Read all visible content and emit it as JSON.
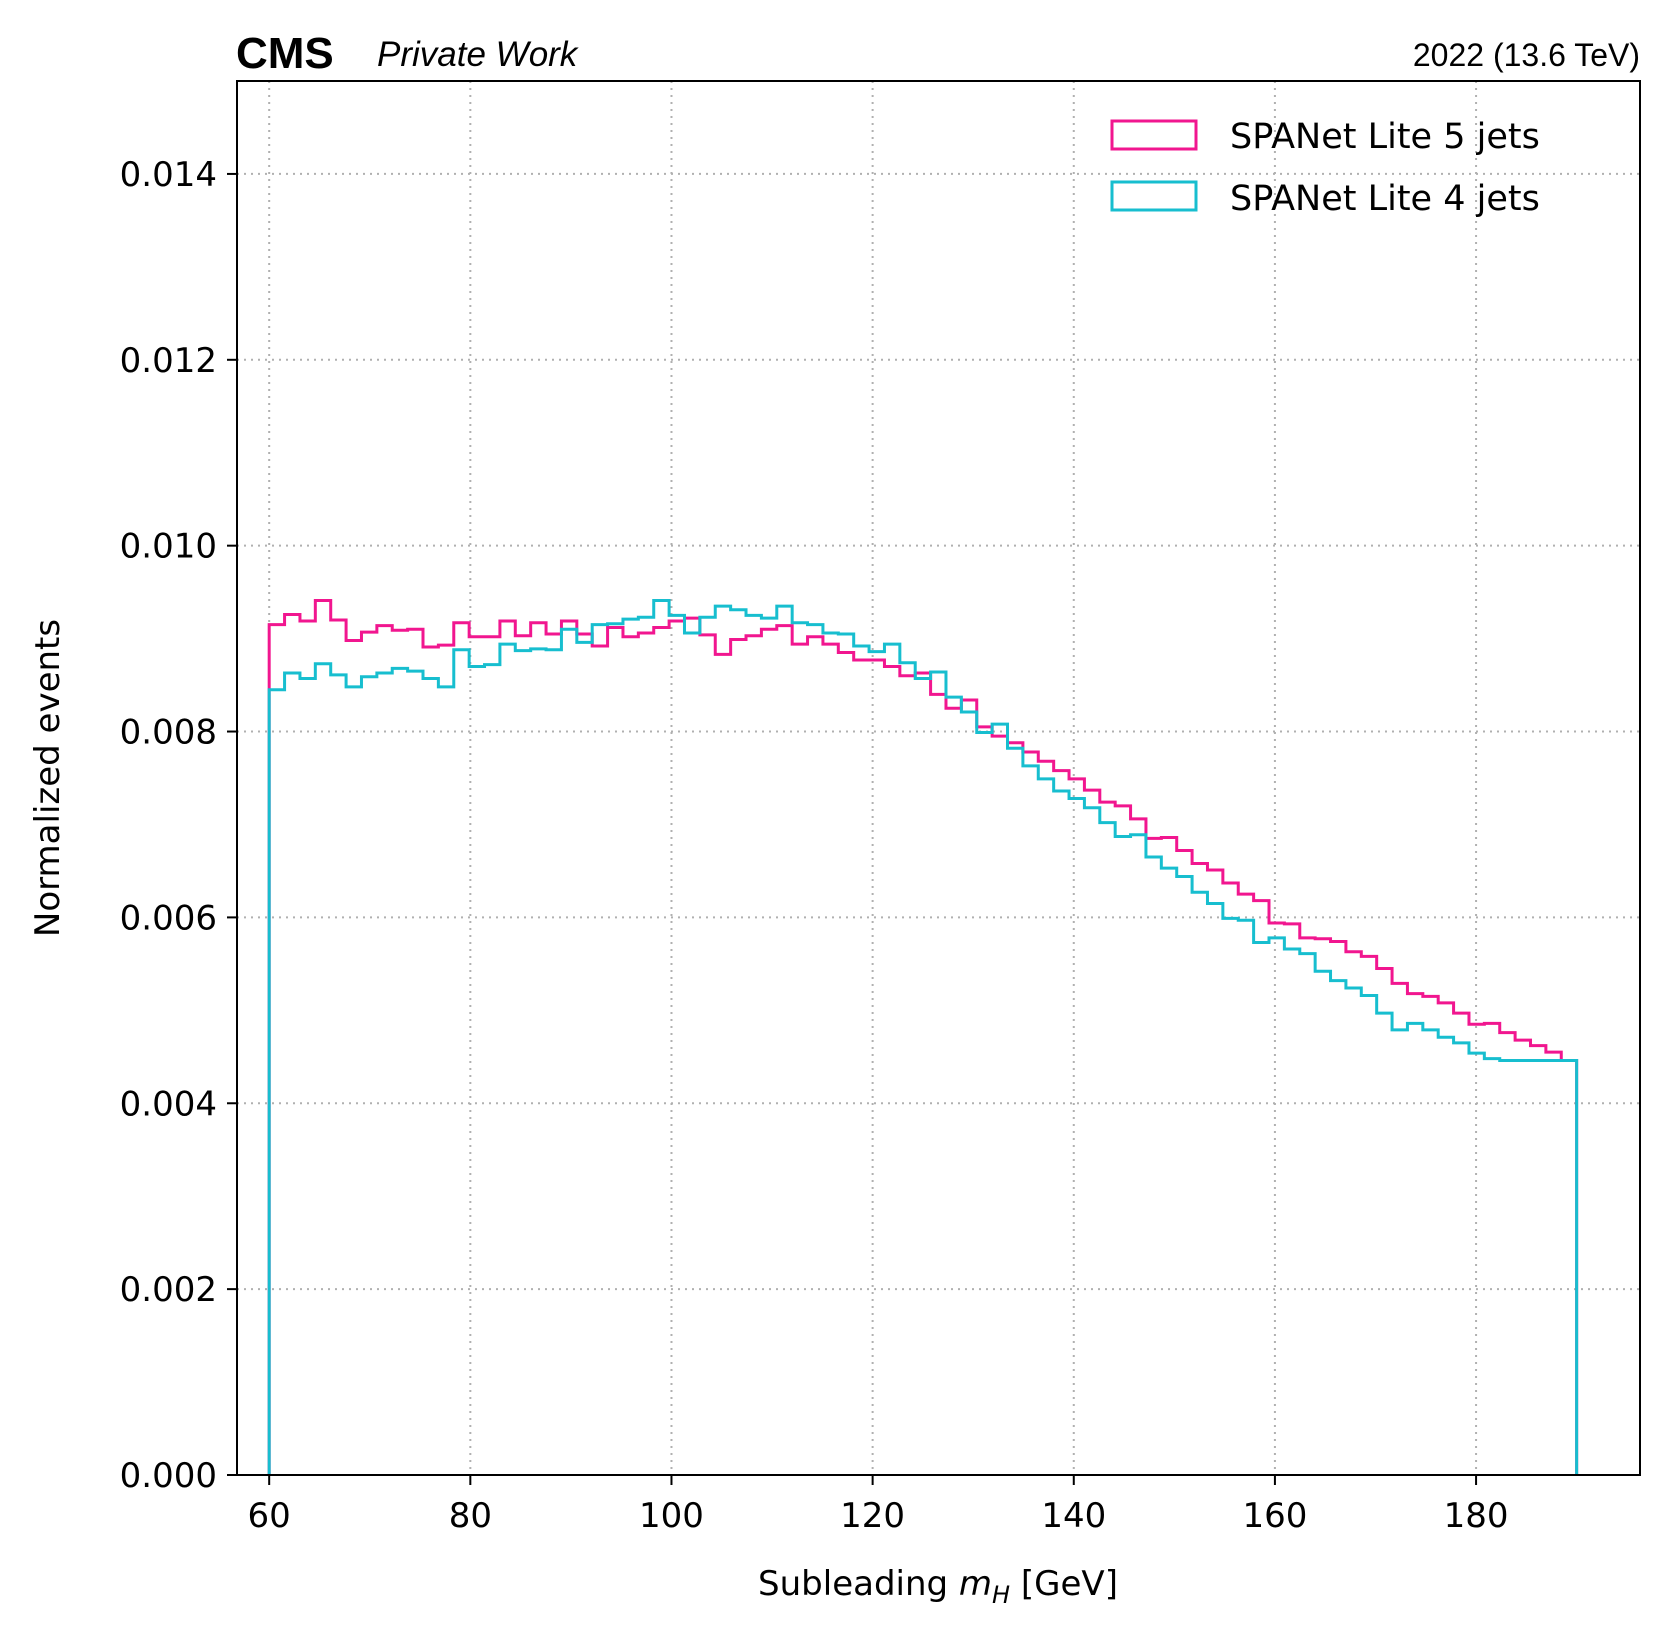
{
  "chart_data": {
    "type": "step",
    "title_left_bold": "CMS",
    "title_left_italic": "Private Work",
    "title_right": "2022 (13.6 TeV)",
    "xlabel_prefix": "Subleading ",
    "xlabel_var": "m",
    "xlabel_sub": "H",
    "xlabel_suffix": " [GeV]",
    "ylabel": "Normalized events",
    "xlim": [
      56.8,
      196.3
    ],
    "ylim": [
      0,
      0.015
    ],
    "xticks": [
      "60",
      "80",
      "100",
      "120",
      "140",
      "160",
      "180"
    ],
    "xtick_values": [
      60,
      80,
      100,
      120,
      140,
      160,
      180
    ],
    "yticks": [
      "0.000",
      "0.002",
      "0.004",
      "0.006",
      "0.008",
      "0.010",
      "0.012",
      "0.014"
    ],
    "ytick_values": [
      0,
      0.002,
      0.004,
      0.006,
      0.008,
      0.01,
      0.012,
      0.014
    ],
    "grid": true,
    "legend_position": "top-right",
    "bin_start": 60,
    "bin_end": 190,
    "series": [
      {
        "name": "SPANet Lite 5 jets",
        "color": "#f1168f",
        "values": [
          0.00915,
          0.00926,
          0.00919,
          0.00941,
          0.0092,
          0.00898,
          0.00907,
          0.00914,
          0.00909,
          0.0091,
          0.00891,
          0.00893,
          0.00917,
          0.00902,
          0.00902,
          0.00919,
          0.00903,
          0.00917,
          0.00905,
          0.00919,
          0.00905,
          0.00892,
          0.00912,
          0.00902,
          0.00906,
          0.00912,
          0.00919,
          0.00922,
          0.00904,
          0.00883,
          0.00899,
          0.00903,
          0.0091,
          0.00914,
          0.00894,
          0.00902,
          0.00894,
          0.00885,
          0.00877,
          0.00877,
          0.0087,
          0.0086,
          0.00863,
          0.0084,
          0.00825,
          0.00834,
          0.00805,
          0.00795,
          0.00788,
          0.00778,
          0.00768,
          0.00758,
          0.00749,
          0.00737,
          0.00724,
          0.0072,
          0.00706,
          0.00685,
          0.00686,
          0.00672,
          0.00658,
          0.00651,
          0.00637,
          0.00625,
          0.00618,
          0.00594,
          0.00593,
          0.00578,
          0.00577,
          0.00574,
          0.00563,
          0.00558,
          0.00545,
          0.00529,
          0.00518,
          0.00515,
          0.00508,
          0.00497,
          0.00485,
          0.00486,
          0.00476,
          0.00468,
          0.00462,
          0.00455,
          0.00446
        ]
      },
      {
        "name": "SPANet Lite 4 jets",
        "color": "#17becf",
        "values": [
          0.00845,
          0.00863,
          0.00857,
          0.00873,
          0.00861,
          0.00848,
          0.00859,
          0.00863,
          0.00868,
          0.00865,
          0.00857,
          0.00848,
          0.00888,
          0.0087,
          0.00872,
          0.00894,
          0.00887,
          0.00889,
          0.00888,
          0.0091,
          0.00896,
          0.00915,
          0.00916,
          0.00921,
          0.00923,
          0.00941,
          0.00925,
          0.00906,
          0.00923,
          0.00935,
          0.00931,
          0.00925,
          0.00922,
          0.00935,
          0.00917,
          0.00915,
          0.00906,
          0.00905,
          0.00892,
          0.00886,
          0.00894,
          0.00874,
          0.00857,
          0.00864,
          0.00837,
          0.00821,
          0.00799,
          0.00808,
          0.00782,
          0.00763,
          0.00749,
          0.00736,
          0.00728,
          0.00718,
          0.00702,
          0.00687,
          0.00689,
          0.00665,
          0.00653,
          0.00644,
          0.00627,
          0.00615,
          0.00599,
          0.00597,
          0.00573,
          0.00578,
          0.00566,
          0.00561,
          0.00542,
          0.00532,
          0.00524,
          0.00516,
          0.00497,
          0.00479,
          0.00486,
          0.00479,
          0.00471,
          0.00465,
          0.00454,
          0.00448,
          0.00446,
          0.00446,
          0.00446,
          0.00446,
          0.00446
        ]
      }
    ]
  }
}
